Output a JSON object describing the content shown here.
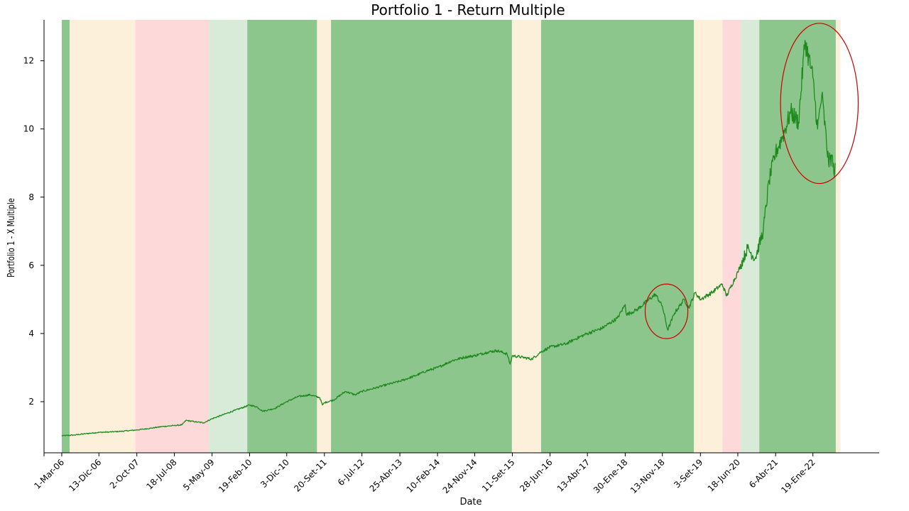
{
  "chart_data": {
    "type": "line",
    "title": "Portfolio 1 - Return Multiple",
    "xlabel": "Date",
    "ylabel": "Portfolio 1 - X Multiple",
    "xlim": [
      "2005-10-15",
      "2023-06-15"
    ],
    "ylim": [
      0.5,
      13.2
    ],
    "yticks": [
      2,
      4,
      6,
      8,
      10,
      12
    ],
    "xticks": [
      {
        "date": "2006-03-01",
        "label": "1-Mar-06"
      },
      {
        "date": "2006-12-13",
        "label": "13-Dic-06"
      },
      {
        "date": "2007-10-02",
        "label": "2-Oct-07"
      },
      {
        "date": "2008-07-18",
        "label": "18-Jul-08"
      },
      {
        "date": "2009-05-05",
        "label": "5-May-09"
      },
      {
        "date": "2010-02-19",
        "label": "19-Feb-10"
      },
      {
        "date": "2010-12-03",
        "label": "3-Dic-10"
      },
      {
        "date": "2011-09-20",
        "label": "20-Set-11"
      },
      {
        "date": "2012-07-06",
        "label": "6-Jul-12"
      },
      {
        "date": "2013-04-25",
        "label": "25-Abr-13"
      },
      {
        "date": "2014-02-10",
        "label": "10-Feb-14"
      },
      {
        "date": "2014-11-24",
        "label": "24-Nov-14"
      },
      {
        "date": "2015-09-11",
        "label": "11-Set-15"
      },
      {
        "date": "2016-06-28",
        "label": "28-Jun-16"
      },
      {
        "date": "2017-04-13",
        "label": "13-Abr-17"
      },
      {
        "date": "2018-01-30",
        "label": "30-Ene-18"
      },
      {
        "date": "2018-11-13",
        "label": "13-Nov-18"
      },
      {
        "date": "2019-09-03",
        "label": "3-Set-19"
      },
      {
        "date": "2020-06-18",
        "label": "18-Jun-20"
      },
      {
        "date": "2021-04-06",
        "label": "6-Abr-21"
      },
      {
        "date": "2022-01-19",
        "label": "19-Ene-22"
      }
    ],
    "regimes": [
      {
        "start": "2006-03-01",
        "end": "2006-05-01",
        "color": "#8cc68c"
      },
      {
        "start": "2006-05-01",
        "end": "2007-09-20",
        "color": "#fdf0da"
      },
      {
        "start": "2007-09-20",
        "end": "2009-04-10",
        "color": "#fed9d9"
      },
      {
        "start": "2009-04-10",
        "end": "2010-02-01",
        "color": "#d8ebd8"
      },
      {
        "start": "2010-02-01",
        "end": "2011-07-25",
        "color": "#8cc68c"
      },
      {
        "start": "2011-07-25",
        "end": "2011-11-10",
        "color": "#fdf0da"
      },
      {
        "start": "2011-11-10",
        "end": "2015-09-08",
        "color": "#8cc68c"
      },
      {
        "start": "2015-09-08",
        "end": "2016-04-20",
        "color": "#fdf0da"
      },
      {
        "start": "2016-04-20",
        "end": "2019-07-15",
        "color": "#8cc68c"
      },
      {
        "start": "2019-07-15",
        "end": "2020-02-20",
        "color": "#fdf0da"
      },
      {
        "start": "2020-02-20",
        "end": "2020-07-10",
        "color": "#fed9d9"
      },
      {
        "start": "2020-07-10",
        "end": "2020-12-01",
        "color": "#d8ebd8"
      },
      {
        "start": "2020-12-01",
        "end": "2022-07-15",
        "color": "#8cc68c"
      },
      {
        "start": "2022-07-15",
        "end": "2022-08-20",
        "color": "#fdf0da"
      }
    ],
    "series": [
      {
        "color": "#1e8a1e",
        "points": [
          [
            "2006-03-01",
            1.0
          ],
          [
            "2006-06-01",
            1.02
          ],
          [
            "2006-09-01",
            1.06
          ],
          [
            "2006-12-13",
            1.1
          ],
          [
            "2007-03-01",
            1.11
          ],
          [
            "2007-06-01",
            1.13
          ],
          [
            "2007-10-02",
            1.17
          ],
          [
            "2008-01-15",
            1.22
          ],
          [
            "2008-04-15",
            1.27
          ],
          [
            "2008-07-18",
            1.3
          ],
          [
            "2008-09-15",
            1.32
          ],
          [
            "2008-10-15",
            1.45
          ],
          [
            "2009-01-15",
            1.4
          ],
          [
            "2009-03-01",
            1.38
          ],
          [
            "2009-05-05",
            1.5
          ],
          [
            "2009-08-01",
            1.62
          ],
          [
            "2009-11-01",
            1.75
          ],
          [
            "2010-02-19",
            1.9
          ],
          [
            "2010-04-15",
            1.85
          ],
          [
            "2010-06-01",
            1.72
          ],
          [
            "2010-09-01",
            1.8
          ],
          [
            "2010-12-03",
            2.0
          ],
          [
            "2011-03-01",
            2.15
          ],
          [
            "2011-06-01",
            2.2
          ],
          [
            "2011-08-15",
            2.12
          ],
          [
            "2011-09-05",
            1.9
          ],
          [
            "2011-09-20",
            1.97
          ],
          [
            "2011-12-01",
            2.05
          ],
          [
            "2012-03-01",
            2.3
          ],
          [
            "2012-05-15",
            2.2
          ],
          [
            "2012-07-06",
            2.3
          ],
          [
            "2012-10-15",
            2.4
          ],
          [
            "2013-01-15",
            2.5
          ],
          [
            "2013-04-25",
            2.6
          ],
          [
            "2013-08-15",
            2.75
          ],
          [
            "2013-11-15",
            2.9
          ],
          [
            "2014-02-10",
            3.0
          ],
          [
            "2014-06-01",
            3.2
          ],
          [
            "2014-09-01",
            3.3
          ],
          [
            "2014-11-24",
            3.35
          ],
          [
            "2015-03-01",
            3.45
          ],
          [
            "2015-05-15",
            3.5
          ],
          [
            "2015-08-01",
            3.4
          ],
          [
            "2015-08-25",
            3.1
          ],
          [
            "2015-09-11",
            3.35
          ],
          [
            "2015-12-01",
            3.3
          ],
          [
            "2016-02-10",
            3.25
          ],
          [
            "2016-04-15",
            3.45
          ],
          [
            "2016-06-28",
            3.6
          ],
          [
            "2016-11-01",
            3.7
          ],
          [
            "2017-01-15",
            3.85
          ],
          [
            "2017-04-13",
            4.0
          ],
          [
            "2017-08-01",
            4.15
          ],
          [
            "2017-12-01",
            4.45
          ],
          [
            "2018-01-30",
            4.85
          ],
          [
            "2018-02-09",
            4.55
          ],
          [
            "2018-05-01",
            4.7
          ],
          [
            "2018-09-20",
            5.15
          ],
          [
            "2018-11-13",
            4.8
          ],
          [
            "2018-12-24",
            4.1
          ],
          [
            "2019-02-15",
            4.6
          ],
          [
            "2019-05-01",
            5.0
          ],
          [
            "2019-06-05",
            4.75
          ],
          [
            "2019-07-25",
            5.2
          ],
          [
            "2019-09-03",
            5.0
          ],
          [
            "2019-12-01",
            5.2
          ],
          [
            "2020-02-19",
            5.45
          ],
          [
            "2020-03-23",
            5.1
          ],
          [
            "2020-06-18",
            5.8
          ],
          [
            "2020-09-01",
            6.5
          ],
          [
            "2020-10-30",
            6.2
          ],
          [
            "2020-12-31",
            7.0
          ],
          [
            "2021-02-15",
            8.5
          ],
          [
            "2021-04-06",
            9.3
          ],
          [
            "2021-06-01",
            9.8
          ],
          [
            "2021-08-01",
            10.5
          ],
          [
            "2021-09-30",
            10.2
          ],
          [
            "2021-11-19",
            12.6
          ],
          [
            "2022-01-19",
            11.5
          ],
          [
            "2022-02-24",
            10.0
          ],
          [
            "2022-03-29",
            11.0
          ],
          [
            "2022-05-20",
            9.0
          ],
          [
            "2022-06-15",
            9.2
          ],
          [
            "2022-06-30",
            8.7
          ],
          [
            "2022-07-10",
            9.0
          ]
        ]
      }
    ],
    "annotations": [
      {
        "shape": "ellipse",
        "center_date": "2018-12-15",
        "center_y": 4.65,
        "rx_days": 165,
        "ry_value": 0.8,
        "color": "#cc0000"
      },
      {
        "shape": "ellipse",
        "center_date": "2022-03-10",
        "center_y": 10.75,
        "rx_days": 300,
        "ry_value": 2.35,
        "color": "#cc0000"
      }
    ],
    "grid": false,
    "legend": "none"
  }
}
